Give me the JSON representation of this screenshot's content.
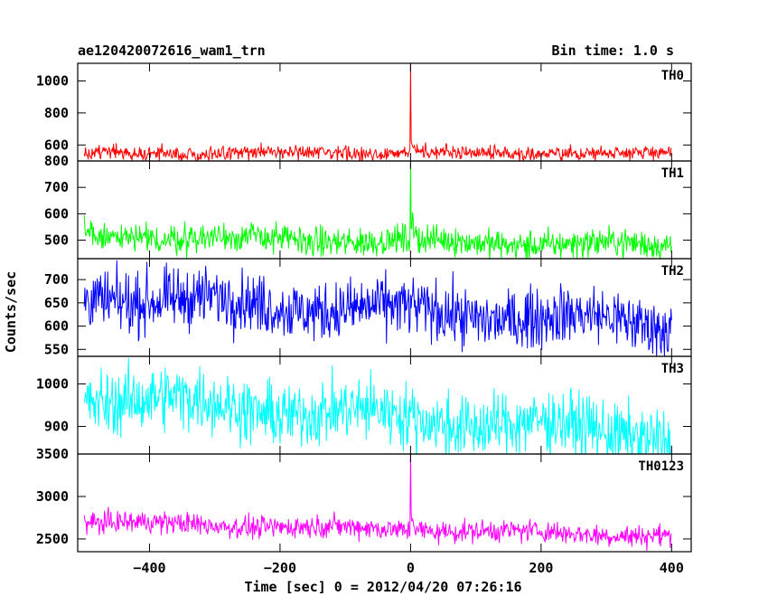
{
  "chart_data": {
    "type": "line",
    "title": "ae120420072616_wam1_trn",
    "subtitle": "Bin time: 1.0 s",
    "xlabel": "Time [sec] 0 = 2012/04/20 07:26:16",
    "ylabel": "Counts/sec",
    "xlim": [
      -510,
      430
    ],
    "xticks": [
      -400,
      -200,
      0,
      200,
      400
    ],
    "xtick_labels": [
      "−400",
      "−200",
      "0",
      "200",
      "400"
    ],
    "panels": [
      {
        "name": "TH0",
        "color": "#ff0000",
        "ylim": [
          500,
          1110
        ],
        "yticks": [
          600,
          800,
          1000
        ],
        "ytick_labels": [
          "600",
          "800",
          "1000"
        ],
        "baseline": 550,
        "noise": 22,
        "trend": 0,
        "wander": 8,
        "burst": {
          "x": 0,
          "peak": 1110
        },
        "after_burst": {
          "level": 70,
          "decay": 6
        }
      },
      {
        "name": "TH1",
        "color": "#00ff00",
        "ylim": [
          430,
          800
        ],
        "yticks": [
          500,
          600,
          700,
          800
        ],
        "ytick_labels": [
          "500",
          "600",
          "700",
          "800"
        ],
        "baseline": 515,
        "noise": 28,
        "trend": -35,
        "wander": 10,
        "burst": {
          "x": 0,
          "peak": 800
        },
        "after_burst": {
          "level": 90,
          "decay": 4
        }
      },
      {
        "name": "TH2",
        "color": "#0000ff",
        "ylim": [
          535,
          745
        ],
        "yticks": [
          550,
          600,
          650,
          700
        ],
        "ytick_labels": [
          "550",
          "600",
          "650",
          "700"
        ],
        "baseline": 665,
        "noise": 32,
        "trend": -60,
        "wander": 12
      },
      {
        "name": "TH3",
        "color": "#00ffff",
        "ylim": [
          835,
          1065
        ],
        "yticks": [
          900,
          1000
        ],
        "ytick_labels": [
          "900",
          "1000"
        ],
        "baseline": 970,
        "noise": 38,
        "trend": -90,
        "wander": 15
      },
      {
        "name": "TH0123",
        "color": "#ff00ff",
        "ylim": [
          2350,
          3500
        ],
        "yticks": [
          2500,
          3000,
          3500
        ],
        "ytick_labels": [
          "2500",
          "3000",
          "3500"
        ],
        "baseline": 2700,
        "noise": 65,
        "trend": -160,
        "wander": 20,
        "burst": {
          "x": 0,
          "peak": 3500
        },
        "after_burst": {
          "level": 250,
          "decay": 5
        }
      }
    ]
  }
}
